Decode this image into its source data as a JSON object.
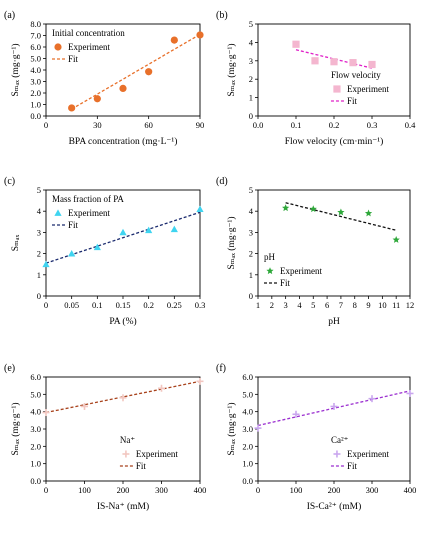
{
  "chart_data": [
    {
      "panel_label": "(a)",
      "type": "scatter",
      "xlabel": "BPA concentration (mg·L⁻¹)",
      "ylabel": "Sₘₐₓ (mg·g⁻¹)",
      "xlim": [
        0,
        90
      ],
      "ylim": [
        0,
        8
      ],
      "xticks": [
        "0",
        "30",
        "60",
        "90"
      ],
      "yticks": [
        "0.0",
        "1.0",
        "2.0",
        "3.0",
        "4.0",
        "5.0",
        "6.0",
        "7.0",
        "8.0"
      ],
      "legend": {
        "title": "Initial concentration",
        "position": "top-left",
        "experiment_label": "Experiment",
        "fit_label": "Fit"
      },
      "marker": "circle",
      "color": "#e8702a",
      "x": [
        15,
        30,
        45,
        60,
        75,
        90
      ],
      "y": [
        0.7,
        1.5,
        2.4,
        3.85,
        6.6,
        7.05
      ],
      "fit": {
        "x": [
          15,
          90
        ],
        "y": [
          0.6,
          7.1
        ]
      }
    },
    {
      "panel_label": "(b)",
      "type": "scatter",
      "xlabel": "Flow velocity (cm·min⁻¹)",
      "ylabel": "Sₘₐₓ (mg·g⁻¹)",
      "xlim": [
        0,
        0.4
      ],
      "ylim": [
        0,
        5
      ],
      "xticks": [
        "0.0",
        "0.1",
        "0.2",
        "0.3",
        "0.4"
      ],
      "yticks": [
        "0",
        "1",
        "2",
        "3",
        "4",
        "5"
      ],
      "legend": {
        "title": "Flow velocity",
        "position": "bottom-right",
        "experiment_label": "Experiment",
        "fit_label": "Fit"
      },
      "marker": "square",
      "color": "#f4b6cf",
      "fit_color": "#e020c8",
      "x": [
        0.1,
        0.15,
        0.2,
        0.25,
        0.3
      ],
      "y": [
        3.9,
        3.0,
        2.95,
        2.9,
        2.8
      ],
      "fit": {
        "x": [
          0.1,
          0.3
        ],
        "y": [
          3.6,
          2.6
        ]
      }
    },
    {
      "panel_label": "(c)",
      "type": "scatter",
      "xlabel": "PA (%)",
      "ylabel": "Sₘₐₓ",
      "xlim": [
        0,
        0.3
      ],
      "ylim": [
        0,
        5
      ],
      "xticks": [
        "0",
        "0.05",
        "0.1",
        "0.15",
        "0.2",
        "0.25",
        "0.3"
      ],
      "yticks": [
        "0",
        "1",
        "2",
        "3",
        "4",
        "5"
      ],
      "legend": {
        "title": "Mass fraction of PA",
        "position": "top-left",
        "experiment_label": "Experiment",
        "fit_label": "Fit"
      },
      "marker": "triangle",
      "color": "#3fd4f0",
      "fit_color": "#1a2a6e",
      "x": [
        0,
        0.05,
        0.1,
        0.15,
        0.2,
        0.25,
        0.3
      ],
      "y": [
        1.5,
        2.0,
        2.3,
        3.0,
        3.1,
        3.15,
        4.1
      ],
      "fit": {
        "x": [
          0,
          0.3
        ],
        "y": [
          1.55,
          3.95
        ]
      }
    },
    {
      "panel_label": "(d)",
      "type": "scatter",
      "xlabel": "pH",
      "ylabel": "Sₘₐₓ (mg·g⁻¹)",
      "xlim": [
        1,
        12
      ],
      "ylim": [
        0,
        5
      ],
      "xticks": [
        "1",
        "2",
        "3",
        "4",
        "5",
        "6",
        "7",
        "8",
        "9",
        "10",
        "11",
        "12"
      ],
      "yticks": [
        "0",
        "1",
        "2",
        "3",
        "4",
        "5"
      ],
      "legend": {
        "title": "pH",
        "position": "bottom-left",
        "experiment_label": "Experiment",
        "fit_label": "Fit"
      },
      "marker": "star",
      "color": "#2ea83a",
      "fit_color": "#111111",
      "x": [
        3,
        5,
        7,
        9,
        11
      ],
      "y": [
        4.15,
        4.1,
        3.95,
        3.9,
        2.65
      ],
      "fit": {
        "x": [
          3,
          11
        ],
        "y": [
          4.4,
          3.1
        ]
      }
    },
    {
      "panel_label": "(e)",
      "type": "scatter",
      "xlabel": "IS-Na⁺ (mM)",
      "ylabel": "Sₘₐₓ (mg·g⁻¹)",
      "xlim": [
        0,
        400
      ],
      "ylim": [
        0,
        6
      ],
      "xticks": [
        "0",
        "100",
        "200",
        "300",
        "400"
      ],
      "yticks": [
        "0.0",
        "1.0",
        "2.0",
        "3.0",
        "4.0",
        "5.0",
        "6.0"
      ],
      "legend": {
        "title": "Na⁺",
        "position": "bottom-right",
        "experiment_label": "Experiment",
        "fit_label": "Fit"
      },
      "marker": "plus",
      "color": "#f2c6c0",
      "fit_color": "#a8421c",
      "x": [
        0,
        100,
        200,
        300,
        400
      ],
      "y": [
        3.95,
        4.3,
        4.8,
        5.35,
        5.75
      ],
      "fit": {
        "x": [
          0,
          400
        ],
        "y": [
          3.95,
          5.75
        ]
      }
    },
    {
      "panel_label": "(f)",
      "type": "scatter",
      "xlabel": "IS-Ca²⁺ (mM)",
      "ylabel": "Sₘₐₓ (mg·g⁻¹)",
      "xlim": [
        0,
        400
      ],
      "ylim": [
        0,
        6
      ],
      "xticks": [
        "0",
        "100",
        "200",
        "300",
        "400"
      ],
      "yticks": [
        "0.0",
        "1.0",
        "2.0",
        "3.0",
        "4.0",
        "5.0",
        "6.0"
      ],
      "legend": {
        "title": "Ca²⁺",
        "position": "bottom-right",
        "experiment_label": "Experiment",
        "fit_label": "Fit"
      },
      "marker": "plus",
      "color": "#c9a6ee",
      "fit_color": "#9b2fd0",
      "x": [
        0,
        100,
        200,
        300,
        400
      ],
      "y": [
        3.05,
        3.85,
        4.3,
        4.75,
        5.05
      ],
      "fit": {
        "x": [
          0,
          400
        ],
        "y": [
          3.2,
          5.2
        ]
      }
    }
  ]
}
